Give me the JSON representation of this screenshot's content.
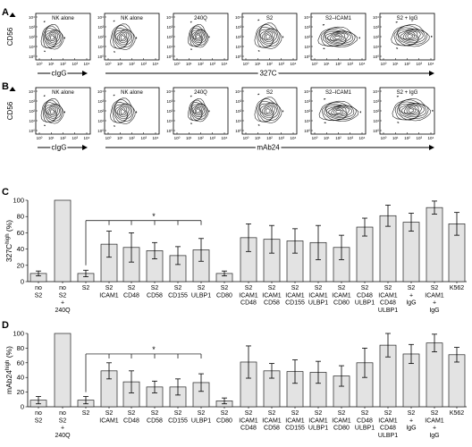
{
  "figure": {
    "panel_letters": [
      "A",
      "B",
      "C",
      "D"
    ],
    "flow_row_A": {
      "y_axis_label": "CD56",
      "x_axis_label_left": "cIgG",
      "x_axis_label_right": "327C",
      "plot_titles": [
        "NK alone",
        "NK alone",
        "240Q",
        "S2",
        "S2–ICAM1",
        "S2 + IgG"
      ]
    },
    "flow_row_B": {
      "y_axis_label": "CD56",
      "x_axis_label_left": "cIgG",
      "x_axis_label_right": "mAb24",
      "plot_titles": [
        "NK alone",
        "NK alone",
        "240Q",
        "S2",
        "S2–ICAM1",
        "S2 + IgG"
      ]
    },
    "axis_ticks": {
      "y": [
        "10⁴",
        "10³",
        "10²",
        "10¹",
        "10⁰"
      ],
      "x": [
        "10⁰",
        "10¹",
        "10²",
        "10³",
        "10⁴"
      ]
    },
    "significance_marker": "*"
  },
  "chart_data": [
    {
      "type": "bar",
      "panel": "C",
      "ylabel": "327C",
      "ylabel_superscript": "high",
      "ylabel_suffix": " (%)",
      "ylim": [
        0,
        100
      ],
      "yticks": [
        0,
        20,
        40,
        60,
        80,
        100
      ],
      "categories": [
        [
          "no",
          "S2"
        ],
        [
          "no",
          "S2",
          "+",
          "240Q"
        ],
        [
          "S2"
        ],
        [
          "S2",
          "ICAM1"
        ],
        [
          "S2",
          "CD48"
        ],
        [
          "S2",
          "CD58"
        ],
        [
          "S2",
          "CD155"
        ],
        [
          "S2",
          "ULBP1"
        ],
        [
          "S2",
          "CD80"
        ],
        [
          "S2",
          "ICAM1",
          "CD48"
        ],
        [
          "S2",
          "ICAM1",
          "CD58"
        ],
        [
          "S2",
          "ICAM1",
          "CD155"
        ],
        [
          "S2",
          "ICAM1",
          "ULBP1"
        ],
        [
          "S2",
          "ICAM1",
          "CD80"
        ],
        [
          "S2",
          "CD48",
          "ULBP1"
        ],
        [
          "S2",
          "ICAM1",
          "CD48",
          "ULBP1"
        ],
        [
          "S2",
          "+",
          "IgG"
        ],
        [
          "S2",
          "ICAM1",
          "+",
          "IgG"
        ],
        [
          "K562"
        ]
      ],
      "values": [
        10,
        100,
        10,
        46,
        42,
        38,
        32,
        39,
        10,
        54,
        52,
        50,
        48,
        42,
        67,
        81,
        73,
        91,
        71
      ],
      "errors": [
        3,
        0,
        4,
        16,
        18,
        10,
        11,
        14,
        3,
        17,
        17,
        15,
        21,
        15,
        11,
        13,
        11,
        8,
        14
      ]
    },
    {
      "type": "bar",
      "panel": "D",
      "ylabel": "mAb24",
      "ylabel_superscript": "high",
      "ylabel_suffix": " (%)",
      "ylim": [
        0,
        100
      ],
      "yticks": [
        0,
        20,
        40,
        60,
        80,
        100
      ],
      "categories": [
        [
          "no",
          "S2"
        ],
        [
          "no",
          "S2",
          "+",
          "240Q"
        ],
        [
          "S2"
        ],
        [
          "S2",
          "ICAM1"
        ],
        [
          "S2",
          "CD48"
        ],
        [
          "S2",
          "CD58"
        ],
        [
          "S2",
          "CD155"
        ],
        [
          "S2",
          "ULBP1"
        ],
        [
          "S2",
          "CD80"
        ],
        [
          "S2",
          "ICAM1",
          "CD48"
        ],
        [
          "S2",
          "ICAM1",
          "CD58"
        ],
        [
          "S2",
          "ICAM1",
          "CD155"
        ],
        [
          "S2",
          "ICAM1",
          "ULBP1"
        ],
        [
          "S2",
          "ICAM1",
          "CD80"
        ],
        [
          "S2",
          "CD48",
          "ULBP1"
        ],
        [
          "S2",
          "ICAM1",
          "CD48",
          "ULBP1"
        ],
        [
          "S2",
          "+",
          "IgG"
        ],
        [
          "S2",
          "ICAM1",
          "+",
          "IgG"
        ],
        [
          "K562"
        ]
      ],
      "values": [
        9,
        100,
        9,
        49,
        34,
        27,
        27,
        33,
        8,
        61,
        49,
        48,
        47,
        42,
        60,
        84,
        72,
        87,
        71
      ],
      "errors": [
        5,
        0,
        5,
        11,
        15,
        8,
        11,
        12,
        4,
        22,
        10,
        16,
        15,
        14,
        20,
        16,
        13,
        12,
        10
      ]
    }
  ]
}
